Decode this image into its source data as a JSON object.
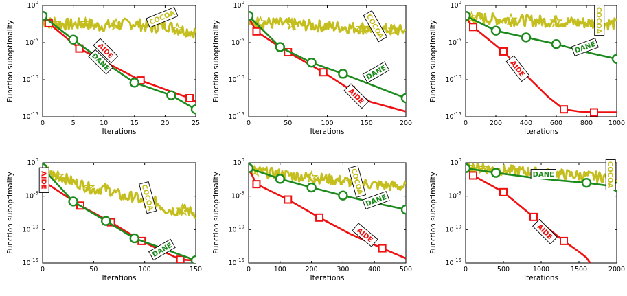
{
  "colors": {
    "AIDE": "#ee1111",
    "DANE": "#1c8a1c",
    "COCOA": "#c4bf1e"
  },
  "chart_data": [
    {
      "type": "line",
      "xlabel": "Iterations",
      "ylabel": "Function suboptimality",
      "y_scale": "log",
      "xlim": [
        0,
        25
      ],
      "ylim_exp": [
        -15,
        0
      ],
      "xticks": [
        "0",
        "5",
        "10",
        "15",
        "20",
        "25"
      ],
      "yticks": [
        "10^0",
        "10^-5",
        "10^-10",
        "10^-15"
      ],
      "series": [
        {
          "name": "AIDE",
          "x": [
            0,
            1,
            6,
            16,
            24,
            25
          ],
          "y_exp": [
            -1.7,
            -2.4,
            -5.8,
            -10.1,
            -12.5,
            -13.0
          ],
          "markers": [
            1,
            6,
            16,
            24
          ]
        },
        {
          "name": "DANE",
          "x": [
            0,
            5,
            10,
            15,
            21,
            25
          ],
          "y_exp": [
            -1.4,
            -4.6,
            -7.6,
            -10.4,
            -12.1,
            -14.0
          ],
          "markers": [
            0,
            5,
            15,
            21,
            25
          ]
        },
        {
          "name": "COCOA",
          "x": [
            0,
            2,
            5,
            7,
            9,
            12,
            15,
            18,
            20,
            22,
            25
          ],
          "y_exp": [
            -2.2,
            -2.4,
            -2.6,
            -2.4,
            -2.8,
            -2.6,
            -2.4,
            -3.0,
            -2.6,
            -3.2,
            -3.6
          ],
          "markers": [
            2,
            7,
            12,
            22
          ],
          "noisy": true
        }
      ]
    },
    {
      "type": "line",
      "xlabel": "Iterations",
      "ylabel": "Function suboptimality",
      "y_scale": "log",
      "xlim": [
        0,
        200
      ],
      "ylim_exp": [
        -15,
        0
      ],
      "xticks": [
        "0",
        "50",
        "100",
        "150",
        "200"
      ],
      "yticks": [
        "10^0",
        "10^-5",
        "10^-10",
        "10^-15"
      ],
      "series": [
        {
          "name": "AIDE",
          "x": [
            0,
            10,
            50,
            95,
            130,
            155,
            200
          ],
          "y_exp": [
            -1.6,
            -3.5,
            -6.3,
            -9.0,
            -11.4,
            -13.0,
            -14.3
          ],
          "markers": [
            10,
            50,
            95,
            130
          ]
        },
        {
          "name": "DANE",
          "x": [
            0,
            40,
            80,
            120,
            200
          ],
          "y_exp": [
            -1.4,
            -5.6,
            -7.7,
            -9.2,
            -12.5
          ],
          "markers": [
            0,
            40,
            80,
            120,
            200
          ]
        },
        {
          "name": "COCOA",
          "x": [
            0,
            50,
            100,
            150,
            200
          ],
          "y_exp": [
            -2.2,
            -2.5,
            -2.8,
            -3.1,
            -3.4
          ],
          "markers": [
            15,
            55,
            145,
            185
          ],
          "noisy": true
        }
      ]
    },
    {
      "type": "line",
      "xlabel": "Iterations",
      "ylabel": "Function suboptimality",
      "y_scale": "log",
      "xlim": [
        0,
        1000
      ],
      "ylim_exp": [
        -15,
        0
      ],
      "xticks": [
        "0",
        "200",
        "400",
        "600",
        "800",
        "1000"
      ],
      "yticks": [
        "10^0",
        "10^-5",
        "10^-10",
        "10^-15"
      ],
      "series": [
        {
          "name": "AIDE",
          "x": [
            0,
            50,
            250,
            400,
            550,
            650,
            750,
            850,
            1000
          ],
          "y_exp": [
            -1.6,
            -2.9,
            -6.2,
            -9.4,
            -12.4,
            -14.0,
            -14.3,
            -14.4,
            -14.4
          ],
          "markers": [
            50,
            250,
            650,
            850
          ]
        },
        {
          "name": "DANE",
          "x": [
            0,
            200,
            400,
            600,
            800,
            1000
          ],
          "y_exp": [
            -1.4,
            -3.4,
            -4.3,
            -5.2,
            -6.3,
            -7.2
          ],
          "markers": [
            0,
            200,
            400,
            600,
            1000
          ]
        },
        {
          "name": "COCOA",
          "x": [
            0,
            250,
            500,
            750,
            1000
          ],
          "y_exp": [
            -1.6,
            -1.9,
            -2.1,
            -2.3,
            -2.5
          ],
          "markers": [
            40,
            300,
            600
          ],
          "noisy": true
        }
      ]
    },
    {
      "type": "line",
      "xlabel": "Iterations",
      "ylabel": "Function suboptimality",
      "y_scale": "log",
      "xlim": [
        0,
        150
      ],
      "ylim_exp": [
        -15,
        0
      ],
      "xticks": [
        "0",
        "50",
        "100",
        "150"
      ],
      "yticks": [
        "10^0",
        "10^-5",
        "10^-10",
        "10^-15"
      ],
      "series": [
        {
          "name": "AIDE",
          "x": [
            0,
            5,
            37,
            67,
            97,
            135,
            150
          ],
          "y_exp": [
            -0.9,
            -3.2,
            -6.4,
            -8.9,
            -11.7,
            -14.5,
            -14.6
          ],
          "markers": [
            37,
            67,
            97,
            135
          ]
        },
        {
          "name": "DANE",
          "x": [
            0,
            30,
            62,
            90,
            150
          ],
          "y_exp": [
            -0.8,
            -5.8,
            -8.7,
            -11.3,
            -14.6
          ],
          "markers": [
            0,
            30,
            62,
            90,
            150
          ]
        },
        {
          "name": "COCOA",
          "x": [
            0,
            10,
            20,
            30,
            40,
            50,
            60,
            70,
            80,
            90,
            100,
            110,
            120,
            130,
            140,
            150
          ],
          "y_exp": [
            -0.7,
            -1.8,
            -2.2,
            -2.9,
            -3.3,
            -4.1,
            -3.8,
            -4.4,
            -5.2,
            -5.0,
            -6.1,
            -5.8,
            -6.9,
            -7.2,
            -7.0,
            -7.6
          ],
          "markers": [
            15,
            45,
            103,
            137
          ],
          "noisy": true
        }
      ]
    },
    {
      "type": "line",
      "xlabel": "Iterations",
      "ylabel": "Function suboptimality",
      "y_scale": "log",
      "xlim": [
        0,
        500
      ],
      "ylim_exp": [
        -15,
        0
      ],
      "xticks": [
        "0",
        "100",
        "200",
        "300",
        "400",
        "500"
      ],
      "yticks": [
        "10^0",
        "10^-5",
        "10^-10",
        "10^-15"
      ],
      "series": [
        {
          "name": "AIDE",
          "x": [
            0,
            25,
            125,
            225,
            325,
            425,
            500
          ],
          "y_exp": [
            -0.8,
            -3.2,
            -5.5,
            -8.2,
            -10.7,
            -12.8,
            -14.3
          ],
          "markers": [
            25,
            125,
            225,
            425
          ]
        },
        {
          "name": "DANE",
          "x": [
            0,
            100,
            200,
            300,
            400,
            500
          ],
          "y_exp": [
            -0.8,
            -2.4,
            -3.7,
            -4.9,
            -6.0,
            -7.0
          ],
          "markers": [
            0,
            100,
            200,
            300,
            500
          ]
        },
        {
          "name": "COCOA",
          "x": [
            0,
            100,
            200,
            300,
            400,
            500
          ],
          "y_exp": [
            -1.1,
            -1.7,
            -2.2,
            -2.7,
            -3.3,
            -3.6
          ],
          "markers": [
            20,
            200,
            330
          ],
          "noisy": true
        }
      ]
    },
    {
      "type": "line",
      "xlabel": "Iterations",
      "ylabel": "Function suboptimality",
      "y_scale": "log",
      "xlim": [
        0,
        2000
      ],
      "ylim_exp": [
        -15,
        0
      ],
      "xticks": [
        "0",
        "500",
        "1000",
        "1500",
        "2000"
      ],
      "yticks": [
        "10^0",
        "10^-5",
        "10^-10",
        "10^-15"
      ],
      "series": [
        {
          "name": "AIDE",
          "x": [
            0,
            100,
            500,
            900,
            1300,
            1500,
            1600,
            1650
          ],
          "y_exp": [
            -0.8,
            -1.9,
            -4.4,
            -8.1,
            -11.7,
            -13.3,
            -14.2,
            -15.0
          ],
          "markers": [
            100,
            500,
            900,
            1300
          ]
        },
        {
          "name": "DANE",
          "x": [
            0,
            400,
            800,
            1200,
            1600,
            2000
          ],
          "y_exp": [
            -0.8,
            -1.5,
            -2.1,
            -2.6,
            -3.0,
            -3.6
          ],
          "markers": [
            0,
            400,
            1600,
            2000
          ]
        },
        {
          "name": "COCOA",
          "x": [
            0,
            500,
            1000,
            1500,
            2000
          ],
          "y_exp": [
            -0.6,
            -1.1,
            -1.5,
            -1.9,
            -2.3
          ],
          "markers": [
            40,
            230
          ],
          "noisy": true
        }
      ]
    }
  ],
  "annotations": [
    [
      {
        "text": "COCOA",
        "series": "COCOA",
        "x": 19.5,
        "y_exp": -1.6,
        "angle": -22
      },
      {
        "text": "AIDE",
        "series": "AIDE",
        "x": 10.3,
        "y_exp": -6.1,
        "angle": 45
      },
      {
        "text": "DANE",
        "series": "DANE",
        "x": 9.5,
        "y_exp": -7.6,
        "angle": 45
      }
    ],
    [
      {
        "text": "COCOA",
        "series": "COCOA",
        "x": 161,
        "y_exp": -2.8,
        "angle": 60
      },
      {
        "text": "DANE",
        "series": "DANE",
        "x": 162,
        "y_exp": -9.0,
        "angle": -30
      },
      {
        "text": "AIDE",
        "series": "AIDE",
        "x": 137,
        "y_exp": -12.2,
        "angle": 45
      }
    ],
    [
      {
        "text": "COCOA",
        "series": "COCOA",
        "x": 885,
        "y_exp": -2.0,
        "angle": 90
      },
      {
        "text": "DANE",
        "series": "DANE",
        "x": 790,
        "y_exp": -5.6,
        "angle": -20
      },
      {
        "text": "AIDE",
        "series": "AIDE",
        "x": 345,
        "y_exp": -8.5,
        "angle": 52
      }
    ],
    [
      {
        "text": "AIDE",
        "series": "AIDE",
        "x": 1.5,
        "y_exp": -2.6,
        "angle": 90
      },
      {
        "text": "COCOA",
        "series": "COCOA",
        "x": 103,
        "y_exp": -5.2,
        "angle": 75
      },
      {
        "text": "DANE",
        "series": "DANE",
        "x": 117,
        "y_exp": -13.0,
        "angle": -30
      }
    ],
    [
      {
        "text": "COCOA",
        "series": "COCOA",
        "x": 345,
        "y_exp": -2.8,
        "angle": 75
      },
      {
        "text": "DANE",
        "series": "DANE",
        "x": 405,
        "y_exp": -5.6,
        "angle": -20
      },
      {
        "text": "AIDE",
        "series": "AIDE",
        "x": 370,
        "y_exp": -10.8,
        "angle": 40
      }
    ],
    [
      {
        "text": "DANE",
        "series": "DANE",
        "x": 1030,
        "y_exp": -1.7,
        "angle": 0
      },
      {
        "text": "COCOA",
        "series": "COCOA",
        "x": 1920,
        "y_exp": -1.8,
        "angle": 90
      },
      {
        "text": "AIDE",
        "series": "AIDE",
        "x": 1050,
        "y_exp": -10.3,
        "angle": 45
      }
    ]
  ]
}
